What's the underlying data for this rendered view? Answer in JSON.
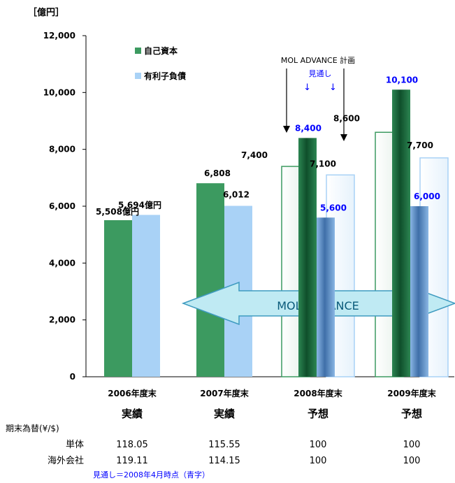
{
  "chart_data": {
    "type": "bar",
    "unit_label": "［億円］",
    "ylim": [
      0,
      12000
    ],
    "y_ticks": [
      "0",
      "2,000",
      "4,000",
      "6,000",
      "8,000",
      "10,000",
      "12,000"
    ],
    "y_tick_values": [
      0,
      2000,
      4000,
      6000,
      8000,
      10000,
      12000
    ],
    "categories": [
      "2006年度末",
      "2007年度末",
      "2008年度末",
      "2009年度末"
    ],
    "category_sublabels": [
      "実績",
      "実績",
      "予想",
      "予想"
    ],
    "series": [
      {
        "name": "自己資本",
        "plan_values": [
          5508,
          6808,
          7400,
          8600
        ],
        "plan_labels": [
          "5,508億円",
          "6,808",
          "7,400",
          "8,600"
        ],
        "outlook_values": [
          null,
          null,
          8400,
          10100
        ],
        "outlook_labels": [
          "",
          "",
          "8,400",
          "10,100"
        ]
      },
      {
        "name": "有利子負債",
        "plan_values": [
          5694,
          6012,
          7100,
          7700
        ],
        "plan_labels": [
          "5,694億円",
          "6,012",
          "7,100",
          "7,700"
        ],
        "outlook_values": [
          null,
          null,
          5600,
          6000
        ],
        "outlook_labels": [
          "",
          "",
          "5,600",
          "6,000"
        ]
      }
    ],
    "colors": {
      "equity": "#3c9a60",
      "equity_outlook": "#1e6b3f",
      "debt": "#a9d2f6",
      "debt_outlook": "#6f9fd2",
      "outlook_label": "#0000ff",
      "arrow_fill": "#bfeaf3",
      "arrow_stroke": "#3f9bc0",
      "arrow_text": "#0a5a7a"
    },
    "annotations": {
      "plan_label": "MOL ADVANCE 計画",
      "outlook_label": "見通し",
      "outlook_arrows": "↓　　↓",
      "banner": "MOL ADVANCE"
    },
    "grid": false,
    "legend_position": "top-left"
  },
  "fx_table": {
    "title": "期末為替(¥/$)",
    "rows": [
      {
        "label": "単体",
        "values": [
          "118.05",
          "115.55",
          "100",
          "100"
        ]
      },
      {
        "label": "海外会社",
        "values": [
          "119.11",
          "114.15",
          "100",
          "100"
        ]
      }
    ]
  },
  "footnote": "見通し＝2008年4月時点（青字）"
}
